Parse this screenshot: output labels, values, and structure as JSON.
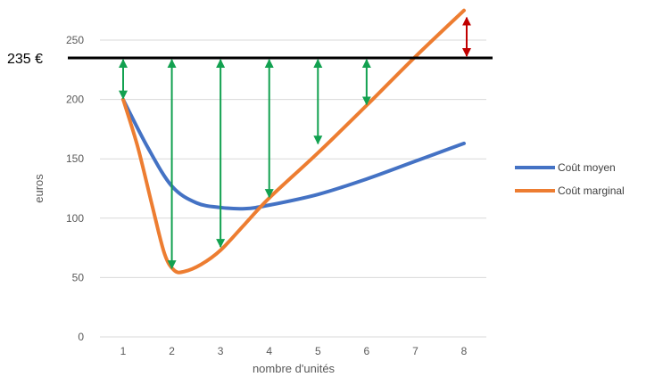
{
  "chart_data": {
    "type": "line",
    "xlabel": "nombre d'unités",
    "ylabel": "euros",
    "xlim": [
      1,
      8
    ],
    "ylim": [
      0,
      250
    ],
    "x_ticks": [
      "1",
      "2",
      "3",
      "4",
      "5",
      "6",
      "7",
      "8"
    ],
    "y_ticks": [
      "0",
      "50",
      "100",
      "150",
      "200",
      "250"
    ],
    "grid": "horizontal",
    "legend_position": "right",
    "reference_line": {
      "value": 235,
      "label": "235 €",
      "color": "#000000"
    },
    "series": [
      {
        "name": "Coût moyen",
        "color": "#4472C4",
        "points": [
          [
            1,
            200
          ],
          [
            1.5,
            160
          ],
          [
            2,
            127
          ],
          [
            2.5,
            113
          ],
          [
            3,
            109
          ],
          [
            3.5,
            108
          ],
          [
            4,
            111
          ],
          [
            5,
            120
          ],
          [
            6,
            133
          ],
          [
            7,
            148
          ],
          [
            8,
            163
          ]
        ]
      },
      {
        "name": "Coût marginal",
        "color": "#ED7D31",
        "points": [
          [
            1,
            200
          ],
          [
            1.3,
            160
          ],
          [
            1.6,
            110
          ],
          [
            1.85,
            70
          ],
          [
            2.05,
            56
          ],
          [
            2.25,
            55
          ],
          [
            2.6,
            61
          ],
          [
            3,
            73
          ],
          [
            3.5,
            95
          ],
          [
            4,
            117
          ],
          [
            5,
            155
          ],
          [
            6,
            195
          ],
          [
            7,
            236
          ],
          [
            8,
            275
          ]
        ]
      }
    ],
    "green_arrows": [
      {
        "x": 1,
        "from": 235,
        "to": 200
      },
      {
        "x": 2,
        "from": 235,
        "to": 57
      },
      {
        "x": 3,
        "from": 235,
        "to": 75
      },
      {
        "x": 4,
        "from": 235,
        "to": 117
      },
      {
        "x": 5,
        "from": 235,
        "to": 162
      },
      {
        "x": 6,
        "from": 235,
        "to": 195
      }
    ],
    "red_arrow": {
      "x": 8,
      "from": 235,
      "to": 275
    },
    "arrow_colors": {
      "green": "#12A150",
      "red": "#C00000"
    }
  }
}
